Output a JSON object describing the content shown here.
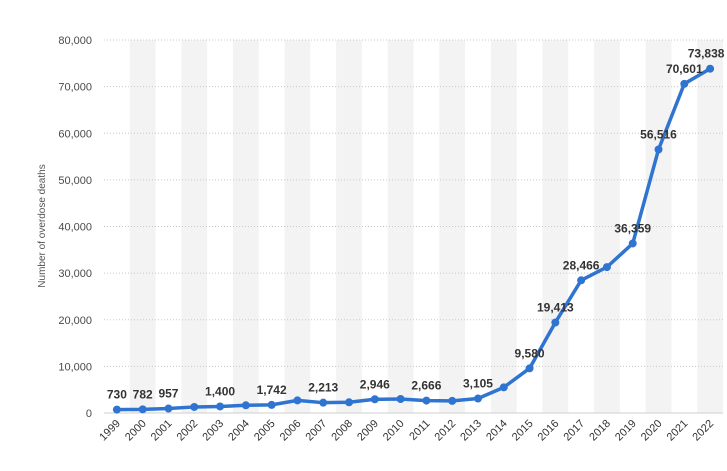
{
  "chart_data": {
    "type": "line",
    "title": "",
    "xlabel": "",
    "ylabel": "Number of overdose deaths",
    "ylim": [
      0,
      80000
    ],
    "yticks": [
      "0",
      "10,000",
      "20,000",
      "30,000",
      "40,000",
      "50,000",
      "60,000",
      "70,000",
      "80,000"
    ],
    "grid": "horizontal dotted, alternating column shading",
    "categories": [
      "1999",
      "2000",
      "2001",
      "2002",
      "2003",
      "2004",
      "2005",
      "2006",
      "2007",
      "2008",
      "2009",
      "2010",
      "2011",
      "2012",
      "2013",
      "2014",
      "2015",
      "2016",
      "2017",
      "2018",
      "2019",
      "2020",
      "2021",
      "2022"
    ],
    "series": [
      {
        "values": [
          730,
          782,
          957,
          1300,
          1400,
          1650,
          1742,
          2700,
          2213,
          2300,
          2946,
          3000,
          2666,
          2600,
          3105,
          5500,
          9580,
          19413,
          28466,
          31300,
          36359,
          56516,
          70601,
          73838
        ]
      }
    ],
    "data_labels": [
      "730",
      "782",
      "957",
      "",
      "1,400",
      "",
      "1,742",
      "",
      "2,213",
      "",
      "2,946",
      "",
      "2,666",
      "",
      "3,105",
      "",
      "9,580",
      "19,413",
      "28,466",
      "",
      "36,359",
      "56,516",
      "70,601",
      "73,838"
    ],
    "line_color": "#2f74d0"
  }
}
